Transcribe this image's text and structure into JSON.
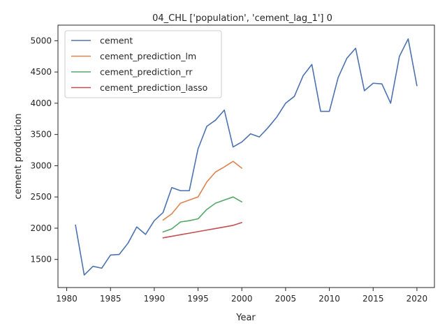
{
  "chart_data": {
    "type": "line",
    "title": "04_CHL ['population', 'cement_lag_1'] 0",
    "xlabel": "Year",
    "ylabel": "cement production",
    "xlim": [
      1979,
      2022
    ],
    "ylim": [
      1050,
      5250
    ],
    "xticks": [
      1980,
      1985,
      1990,
      1995,
      2000,
      2005,
      2010,
      2015,
      2020
    ],
    "yticks": [
      1500,
      2000,
      2500,
      3000,
      3500,
      4000,
      4500,
      5000
    ],
    "grid": false,
    "legend": "top-left",
    "series": [
      {
        "name": "cement",
        "color": "#4c72b0",
        "x": [
          1981,
          1982,
          1983,
          1984,
          1985,
          1986,
          1987,
          1988,
          1989,
          1990,
          1991,
          1992,
          1993,
          1994,
          1995,
          1996,
          1997,
          1998,
          1999,
          2000,
          2001,
          2002,
          2003,
          2004,
          2005,
          2006,
          2007,
          2008,
          2009,
          2010,
          2011,
          2012,
          2013,
          2014,
          2015,
          2016,
          2017,
          2018,
          2019,
          2020
        ],
        "values": [
          2050,
          1250,
          1390,
          1360,
          1570,
          1580,
          1760,
          2020,
          1900,
          2120,
          2250,
          2650,
          2600,
          2600,
          3270,
          3630,
          3730,
          3890,
          3300,
          3380,
          3510,
          3460,
          3610,
          3780,
          4000,
          4110,
          4440,
          4620,
          3870,
          3870,
          4410,
          4720,
          4880,
          4200,
          4320,
          4310,
          4000,
          4750,
          5030,
          4280
        ]
      },
      {
        "name": "cement_prediction_lm",
        "color": "#dd8452",
        "x": [
          1991,
          1992,
          1993,
          1994,
          1995,
          1996,
          1997,
          1998,
          1999,
          2000
        ],
        "values": [
          2130,
          2230,
          2400,
          2450,
          2500,
          2740,
          2900,
          2980,
          3070,
          2960
        ]
      },
      {
        "name": "cement_prediction_rr",
        "color": "#55a868",
        "x": [
          1991,
          1992,
          1993,
          1994,
          1995,
          1996,
          1997,
          1998,
          1999,
          2000
        ],
        "values": [
          1940,
          1990,
          2100,
          2120,
          2150,
          2300,
          2400,
          2450,
          2500,
          2420
        ]
      },
      {
        "name": "cement_prediction_lasso",
        "color": "#c44e52",
        "x": [
          1991,
          1992,
          1993,
          1994,
          1995,
          1996,
          1997,
          1998,
          1999,
          2000
        ],
        "values": [
          1845,
          1870,
          1895,
          1920,
          1945,
          1970,
          1995,
          2020,
          2045,
          2090
        ]
      }
    ]
  }
}
